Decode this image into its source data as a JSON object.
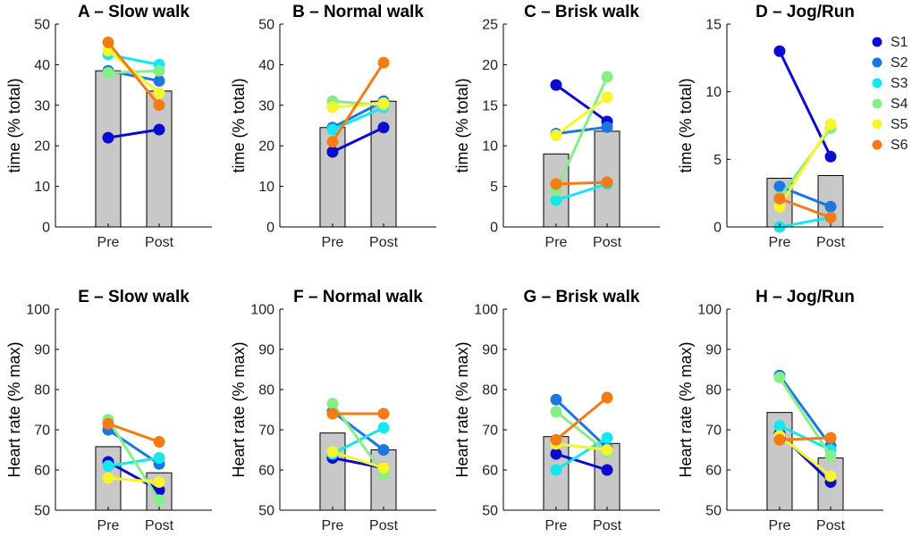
{
  "chart_data": {
    "type": "bar",
    "subjects": [
      "S1",
      "S2",
      "S3",
      "S4",
      "S5",
      "S6"
    ],
    "subject_colors": [
      "#0b0bd0",
      "#1a78e0",
      "#16e6ee",
      "#86ee86",
      "#f6f62a",
      "#f57c14"
    ],
    "bar_color": "#c8c8c8",
    "categories": [
      "Pre",
      "Post"
    ],
    "panels": [
      {
        "title": "A – Slow walk",
        "ylabel": "time (% total)",
        "ylim": [
          0,
          50
        ],
        "yticks": [
          "0",
          "10",
          "20",
          "30",
          "40",
          "50"
        ],
        "bars": [
          38.5,
          33.5
        ],
        "series": [
          {
            "name": "S1",
            "values": [
              22,
              24
            ]
          },
          {
            "name": "S2",
            "values": [
              38.5,
              36
            ]
          },
          {
            "name": "S3",
            "values": [
              42.5,
              40
            ]
          },
          {
            "name": "S4",
            "values": [
              38,
              38.5
            ]
          },
          {
            "name": "S5",
            "values": [
              43.5,
              33
            ]
          },
          {
            "name": "S6",
            "values": [
              45.5,
              30
            ]
          }
        ]
      },
      {
        "title": "B – Normal walk",
        "ylabel": "time (% total)",
        "ylim": [
          0,
          50
        ],
        "yticks": [
          "0",
          "10",
          "20",
          "30",
          "40",
          "50"
        ],
        "bars": [
          24.5,
          31
        ],
        "series": [
          {
            "name": "S1",
            "values": [
              18.5,
              24.5
            ]
          },
          {
            "name": "S2",
            "values": [
              24.5,
              31
            ]
          },
          {
            "name": "S3",
            "values": [
              24,
              29.5
            ]
          },
          {
            "name": "S4",
            "values": [
              31,
              30
            ]
          },
          {
            "name": "S5",
            "values": [
              29.5,
              30.5
            ]
          },
          {
            "name": "S6",
            "values": [
              21,
              40.5
            ]
          }
        ]
      },
      {
        "title": "C – Brisk walk",
        "ylabel": "time (% total)",
        "ylim": [
          0,
          25
        ],
        "yticks": [
          "0",
          "5",
          "10",
          "15",
          "20",
          "25"
        ],
        "bars": [
          9,
          11.8
        ],
        "series": [
          {
            "name": "S1",
            "values": [
              17.5,
              13
            ]
          },
          {
            "name": "S2",
            "values": [
              11.5,
              12.3
            ]
          },
          {
            "name": "S3",
            "values": [
              3.3,
              5.3
            ]
          },
          {
            "name": "S4",
            "values": [
              4.5,
              18.5
            ]
          },
          {
            "name": "S5",
            "values": [
              11.3,
              16
            ]
          },
          {
            "name": "S6",
            "values": [
              5.3,
              5.5
            ]
          }
        ]
      },
      {
        "title": "D – Jog/Run",
        "ylabel": "time (% total)",
        "ylim": [
          0,
          15
        ],
        "yticks": [
          "0",
          "5",
          "10",
          "15"
        ],
        "bars": [
          3.6,
          3.8
        ],
        "series": [
          {
            "name": "S1",
            "values": [
              13,
              5.2
            ]
          },
          {
            "name": "S2",
            "values": [
              3,
              1.5
            ]
          },
          {
            "name": "S3",
            "values": [
              0,
              0.7
            ]
          },
          {
            "name": "S4",
            "values": [
              2.2,
              7.3
            ]
          },
          {
            "name": "S5",
            "values": [
              1.5,
              7.6
            ]
          },
          {
            "name": "S6",
            "values": [
              2.1,
              0.7
            ]
          }
        ]
      },
      {
        "title": "E – Slow walk",
        "ylabel": "Heart rate (% max)",
        "ylim": [
          50,
          100
        ],
        "yticks": [
          "50",
          "60",
          "70",
          "80",
          "90",
          "100"
        ],
        "bars": [
          65.8,
          59.3
        ],
        "series": [
          {
            "name": "S1",
            "values": [
              62,
              55
            ]
          },
          {
            "name": "S2",
            "values": [
              70,
              61.5
            ]
          },
          {
            "name": "S3",
            "values": [
              61,
              63
            ]
          },
          {
            "name": "S4",
            "values": [
              72.5,
              52.5
            ]
          },
          {
            "name": "S5",
            "values": [
              58,
              57
            ]
          },
          {
            "name": "S6",
            "values": [
              71.5,
              67
            ]
          }
        ]
      },
      {
        "title": "F – Normal walk",
        "ylabel": "Heart rate (% max)",
        "ylim": [
          50,
          100
        ],
        "yticks": [
          "50",
          "60",
          "70",
          "80",
          "90",
          "100"
        ],
        "bars": [
          69.2,
          65
        ],
        "series": [
          {
            "name": "S1",
            "values": [
              63,
              60.5
            ]
          },
          {
            "name": "S2",
            "values": [
              74.5,
              65
            ]
          },
          {
            "name": "S3",
            "values": [
              64,
              70.5
            ]
          },
          {
            "name": "S4",
            "values": [
              76.5,
              59
            ]
          },
          {
            "name": "S5",
            "values": [
              64.5,
              60.5
            ]
          },
          {
            "name": "S6",
            "values": [
              74,
              74
            ]
          }
        ]
      },
      {
        "title": "G – Brisk walk",
        "ylabel": "Heart rate (% max)",
        "ylim": [
          50,
          100
        ],
        "yticks": [
          "50",
          "60",
          "70",
          "80",
          "90",
          "100"
        ],
        "bars": [
          68.3,
          66.6
        ],
        "series": [
          {
            "name": "S1",
            "values": [
              64,
              60
            ]
          },
          {
            "name": "S2",
            "values": [
              77.5,
              65.5
            ]
          },
          {
            "name": "S3",
            "values": [
              60,
              68
            ]
          },
          {
            "name": "S4",
            "values": [
              74.5,
              64.5
            ]
          },
          {
            "name": "S5",
            "values": [
              66.5,
              65
            ]
          },
          {
            "name": "S6",
            "values": [
              67.5,
              78
            ]
          }
        ]
      },
      {
        "title": "H – Jog/Run",
        "ylabel": "Heart rate (% max)",
        "ylim": [
          50,
          100
        ],
        "yticks": [
          "50",
          "60",
          "70",
          "80",
          "90",
          "100"
        ],
        "bars": [
          74.3,
          63
        ],
        "series": [
          {
            "name": "S1",
            "values": [
              69,
              57
            ]
          },
          {
            "name": "S2",
            "values": [
              83.5,
              66
            ]
          },
          {
            "name": "S3",
            "values": [
              71,
              65
            ]
          },
          {
            "name": "S4",
            "values": [
              83,
              63.5
            ]
          },
          {
            "name": "S5",
            "values": [
              68.5,
              58.5
            ]
          },
          {
            "name": "S6",
            "values": [
              67.5,
              68
            ]
          }
        ]
      }
    ]
  }
}
